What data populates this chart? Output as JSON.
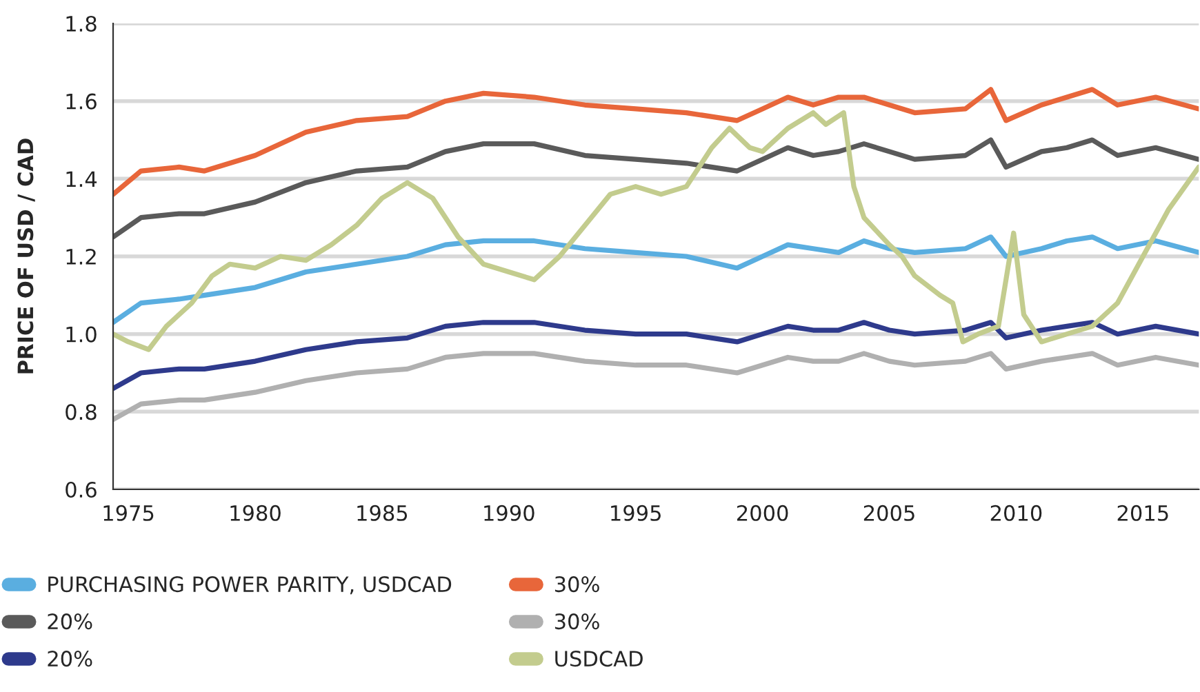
{
  "chart_data": {
    "type": "line",
    "ylabel": "PRICE OF USD / CAD",
    "x": [
      1974.4,
      1975.5,
      1977,
      1978,
      1980,
      1982,
      1984,
      1986,
      1987.5,
      1989,
      1991,
      1993,
      1995,
      1997,
      1999,
      2000,
      2001,
      2002,
      2003,
      2004,
      2005,
      2006,
      2008,
      2009,
      2009.6,
      2011,
      2012,
      2013,
      2014,
      2015.5,
      2017.2
    ],
    "series": [
      {
        "name": "PURCHASING POWER PARITY, USDCAD",
        "color": "#5aaee0",
        "values": [
          1.03,
          1.08,
          1.09,
          1.1,
          1.12,
          1.16,
          1.18,
          1.2,
          1.23,
          1.24,
          1.24,
          1.22,
          1.21,
          1.2,
          1.17,
          1.2,
          1.23,
          1.22,
          1.21,
          1.24,
          1.22,
          1.21,
          1.22,
          1.25,
          1.2,
          1.22,
          1.24,
          1.25,
          1.22,
          1.24,
          1.21
        ]
      },
      {
        "name": "20%",
        "color": "#5a5a5a",
        "values": [
          1.25,
          1.3,
          1.31,
          1.31,
          1.34,
          1.39,
          1.42,
          1.43,
          1.47,
          1.49,
          1.49,
          1.46,
          1.45,
          1.44,
          1.42,
          1.45,
          1.48,
          1.46,
          1.47,
          1.49,
          1.47,
          1.45,
          1.46,
          1.5,
          1.43,
          1.47,
          1.48,
          1.5,
          1.46,
          1.48,
          1.45
        ]
      },
      {
        "name": "20%",
        "color": "#2e3a8c",
        "values": [
          0.86,
          0.9,
          0.91,
          0.91,
          0.93,
          0.96,
          0.98,
          0.99,
          1.02,
          1.03,
          1.03,
          1.01,
          1.0,
          1.0,
          0.98,
          1.0,
          1.02,
          1.01,
          1.01,
          1.03,
          1.01,
          1.0,
          1.01,
          1.03,
          0.99,
          1.01,
          1.02,
          1.03,
          1.0,
          1.02,
          1.0
        ]
      },
      {
        "name": "30%",
        "color": "#e8663a",
        "values": [
          1.36,
          1.42,
          1.43,
          1.42,
          1.46,
          1.52,
          1.55,
          1.56,
          1.6,
          1.62,
          1.61,
          1.59,
          1.58,
          1.57,
          1.55,
          1.58,
          1.61,
          1.59,
          1.61,
          1.61,
          1.59,
          1.57,
          1.58,
          1.63,
          1.55,
          1.59,
          1.61,
          1.63,
          1.59,
          1.61,
          1.58
        ]
      },
      {
        "name": "30%",
        "color": "#b0b0b0",
        "values": [
          0.78,
          0.82,
          0.83,
          0.83,
          0.85,
          0.88,
          0.9,
          0.91,
          0.94,
          0.95,
          0.95,
          0.93,
          0.92,
          0.92,
          0.9,
          0.92,
          0.94,
          0.93,
          0.93,
          0.95,
          0.93,
          0.92,
          0.93,
          0.95,
          0.91,
          0.93,
          0.94,
          0.95,
          0.92,
          0.94,
          0.92
        ]
      },
      {
        "name": "USDCAD",
        "color": "#c3cc8e",
        "x": [
          1974.4,
          1975,
          1975.8,
          1976.5,
          1977.5,
          1978.3,
          1979,
          1980,
          1981,
          1982,
          1983,
          1984,
          1985,
          1986,
          1987,
          1988,
          1989,
          1990,
          1991,
          1992,
          1993,
          1994,
          1995,
          1996,
          1997,
          1998,
          1998.7,
          1999.5,
          2000,
          2001,
          2002,
          2002.5,
          2003.2,
          2003.6,
          2004,
          2005,
          2005.5,
          2006,
          2007,
          2007.5,
          2007.9,
          2008.5,
          2009.3,
          2009.9,
          2010.3,
          2011,
          2012,
          2013,
          2014,
          2015,
          2016,
          2017.2
        ],
        "values": [
          1.0,
          0.98,
          0.96,
          1.02,
          1.08,
          1.15,
          1.18,
          1.17,
          1.2,
          1.19,
          1.23,
          1.28,
          1.35,
          1.39,
          1.35,
          1.25,
          1.18,
          1.16,
          1.14,
          1.2,
          1.28,
          1.36,
          1.38,
          1.36,
          1.38,
          1.48,
          1.53,
          1.48,
          1.47,
          1.53,
          1.57,
          1.54,
          1.57,
          1.38,
          1.3,
          1.23,
          1.2,
          1.15,
          1.1,
          1.08,
          0.98,
          1.0,
          1.02,
          1.26,
          1.05,
          0.98,
          1.0,
          1.02,
          1.08,
          1.2,
          1.32,
          1.43
        ]
      }
    ],
    "xlim": [
      1974.4,
      2017.2
    ],
    "xticks": [
      1975,
      1980,
      1985,
      1990,
      1995,
      2000,
      2005,
      2010,
      2015
    ],
    "ylim": [
      0.6,
      1.8
    ],
    "yticks": [
      {
        "value": 0.6,
        "label": "0.6"
      },
      {
        "value": 0.8,
        "label": "0.8"
      },
      {
        "value": 1.0,
        "label": "1.0"
      },
      {
        "value": 1.2,
        "label": "1.2"
      },
      {
        "value": 1.4,
        "label": "1.4"
      },
      {
        "value": 1.6,
        "label": "1.6"
      },
      {
        "value": 1.8,
        "label": "1.8"
      }
    ],
    "grid": "y",
    "legend": "bottom"
  }
}
